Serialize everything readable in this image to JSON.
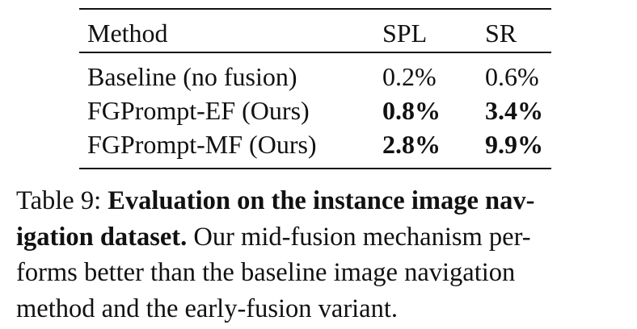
{
  "table": {
    "headers": {
      "method": "Method",
      "spl": "SPL",
      "sr": "SR"
    },
    "rows": [
      {
        "method": "Baseline (no fusion)",
        "spl": "0.2%",
        "sr": "0.6%",
        "bold": false
      },
      {
        "method": "FGPrompt-EF (Ours)",
        "spl": "0.8%",
        "sr": "3.4%",
        "bold": true
      },
      {
        "method": "FGPrompt-MF (Ours)",
        "spl": "2.8%",
        "sr": "9.9%",
        "bold": true
      }
    ]
  },
  "caption": {
    "label": "Table 9:",
    "bold_line1": "Evaluation on the instance image nav-",
    "bold_line2": "igation dataset.",
    "text_line2": "Our mid-fusion mechanism per-",
    "line3": "forms better than the baseline image navigation",
    "line4": "method and the early-fusion variant."
  }
}
